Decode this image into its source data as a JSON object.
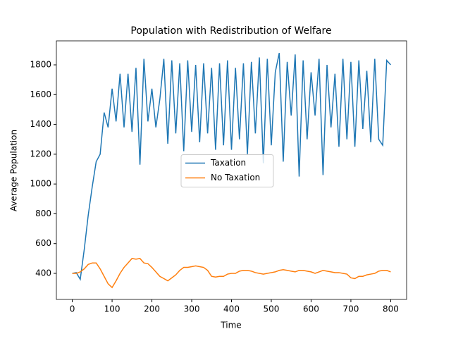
{
  "chart_data": {
    "type": "line",
    "title": "Population with Redistribution of Welfare",
    "x_label": "Time",
    "y_label": "Average Population",
    "x": [
      0,
      10,
      20,
      30,
      40,
      50,
      60,
      70,
      80,
      90,
      100,
      110,
      120,
      130,
      140,
      150,
      160,
      170,
      180,
      190,
      200,
      210,
      220,
      230,
      240,
      250,
      260,
      270,
      280,
      290,
      300,
      310,
      320,
      330,
      340,
      350,
      360,
      370,
      380,
      390,
      400,
      410,
      420,
      430,
      440,
      450,
      460,
      470,
      480,
      490,
      500,
      510,
      520,
      530,
      540,
      550,
      560,
      570,
      580,
      590,
      600,
      610,
      620,
      630,
      640,
      650,
      660,
      670,
      680,
      690,
      700,
      710,
      720,
      730,
      740,
      750,
      760,
      770,
      780,
      790,
      800
    ],
    "series": [
      {
        "name": "Taxation",
        "color": "#1f77b4",
        "values": [
          400,
          405,
          360,
          560,
          790,
          980,
          1150,
          1200,
          1480,
          1380,
          1640,
          1420,
          1740,
          1380,
          1740,
          1350,
          1780,
          1130,
          1840,
          1420,
          1640,
          1380,
          1570,
          1840,
          1270,
          1830,
          1340,
          1810,
          1220,
          1830,
          1350,
          1800,
          1280,
          1810,
          1340,
          1780,
          1230,
          1810,
          1260,
          1830,
          1230,
          1780,
          1300,
          1810,
          1200,
          1820,
          1340,
          1850,
          1140,
          1840,
          1260,
          1750,
          1880,
          1150,
          1820,
          1460,
          1870,
          1050,
          1830,
          1300,
          1750,
          1460,
          1840,
          1060,
          1800,
          1380,
          1740,
          1250,
          1840,
          1300,
          1820,
          1250,
          1830,
          1370,
          1760,
          1280,
          1840,
          1300,
          1260,
          1830,
          1800
        ]
      },
      {
        "name": "No Taxation",
        "color": "#ff7f0e",
        "values": [
          400,
          400,
          410,
          430,
          460,
          470,
          470,
          430,
          380,
          330,
          305,
          350,
          400,
          440,
          470,
          500,
          495,
          500,
          470,
          465,
          440,
          410,
          380,
          365,
          350,
          370,
          390,
          420,
          440,
          440,
          445,
          450,
          445,
          440,
          420,
          380,
          375,
          380,
          380,
          395,
          400,
          400,
          415,
          420,
          420,
          415,
          405,
          400,
          395,
          400,
          405,
          410,
          420,
          425,
          420,
          415,
          410,
          420,
          420,
          415,
          410,
          400,
          410,
          420,
          415,
          410,
          405,
          405,
          400,
          395,
          370,
          365,
          380,
          380,
          390,
          395,
          400,
          415,
          420,
          420,
          410
        ]
      }
    ],
    "xlim": [
      -40,
      840
    ],
    "ylim": [
      225,
      1961
    ],
    "xticks": [
      0,
      100,
      200,
      300,
      400,
      500,
      600,
      700,
      800
    ],
    "yticks": [
      400,
      600,
      800,
      1000,
      1200,
      1400,
      1600,
      1800
    ],
    "legend": "center"
  }
}
